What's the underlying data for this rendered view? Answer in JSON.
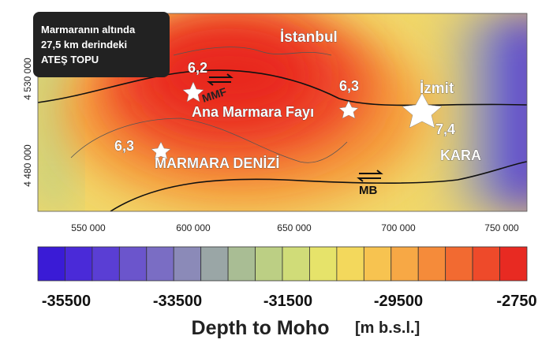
{
  "info_box": {
    "lines": [
      "Marmaranın altında",
      "27,5 km derindeki",
      "ATEŞ TOPU"
    ]
  },
  "map_labels": {
    "istanbul": "İstanbul",
    "izmit": "İzmit",
    "kara": "KARA",
    "sea": "MARMARA DENİZİ",
    "fault": "Ana Marmara Fayı",
    "mmf": "MMF",
    "mb": "MB"
  },
  "earthquakes": [
    "6,2",
    "6,3",
    "6,3",
    "7,4"
  ],
  "x_ticks": [
    "550 000",
    "600 000",
    "650 000",
    "700 000",
    "750 000"
  ],
  "y_ticks": [
    "4 530 000",
    "4 480 000"
  ],
  "colorbar": {
    "ticks": [
      "-35500",
      "-33500",
      "-31500",
      "-29500",
      "-2750"
    ],
    "title": "Depth to Moho",
    "unit": "[m b.s.l.]"
  }
}
